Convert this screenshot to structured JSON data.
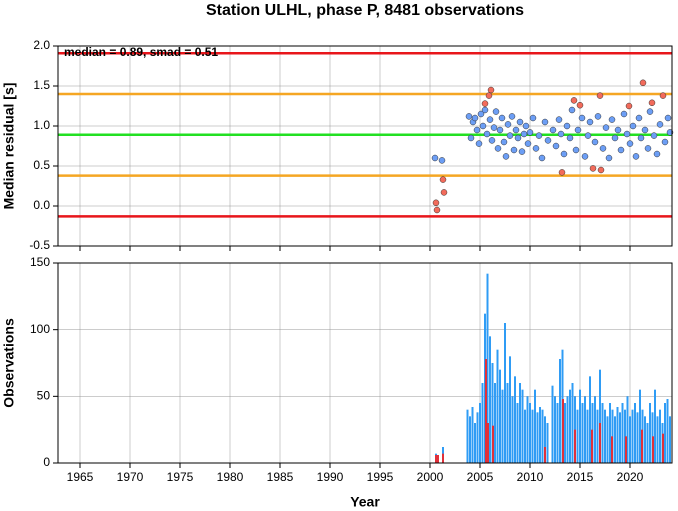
{
  "chart_data": [
    {
      "type": "scatter",
      "title": "Station ULHL, phase P, 8481 observations",
      "ylabel": "Median residual [s]",
      "annotation": "median = 0.89, smad = 0.51",
      "xlim": [
        1962.8,
        2024.2
      ],
      "xticks": [
        1965,
        1970,
        1975,
        1980,
        1985,
        1990,
        1995,
        2000,
        2005,
        2010,
        2015,
        2020
      ],
      "ylim": [
        -0.5,
        2.0
      ],
      "yticks": [
        {
          "value": 2,
          "label": "2.0"
        },
        1.5,
        {
          "value": 1,
          "label": "1.0"
        },
        0.5,
        {
          "value": 0,
          "label": "0.0"
        },
        -0.5
      ],
      "grid": true,
      "lines": [
        {
          "value": 1.91,
          "color": "#e8161b"
        },
        {
          "value": 1.4,
          "color": "#f5a623"
        },
        {
          "value": 0.89,
          "color": "#22e022"
        },
        {
          "value": 0.38,
          "color": "#f5a623"
        },
        {
          "value": -0.13,
          "color": "#e8161b"
        }
      ],
      "series": [
        {
          "color": "#6c9ef5",
          "x": [
            2000.5,
            2001.2,
            2003.9,
            2004.1,
            2004.3,
            2004.5,
            2004.7,
            2004.9,
            2005.1,
            2005.3,
            2005.5,
            2005.7,
            2006.0,
            2006.2,
            2006.4,
            2006.6,
            2006.8,
            2007.0,
            2007.2,
            2007.4,
            2007.6,
            2007.8,
            2008.0,
            2008.2,
            2008.4,
            2008.6,
            2008.8,
            2009.0,
            2009.2,
            2009.4,
            2009.6,
            2009.8,
            2010.0,
            2010.3,
            2010.6,
            2010.9,
            2011.2,
            2011.5,
            2011.8,
            2012.3,
            2012.6,
            2012.9,
            2013.1,
            2013.4,
            2013.7,
            2014.0,
            2014.2,
            2014.6,
            2014.8,
            2015.2,
            2015.5,
            2015.8,
            2016.0,
            2016.5,
            2016.8,
            2017.3,
            2017.6,
            2017.9,
            2018.2,
            2018.5,
            2018.8,
            2019.1,
            2019.4,
            2019.7,
            2020.0,
            2020.3,
            2020.6,
            2020.9,
            2021.1,
            2021.5,
            2021.8,
            2022.0,
            2022.4,
            2022.7,
            2023.0,
            2023.5,
            2023.8,
            2024.0
          ],
          "y": [
            0.6,
            0.57,
            1.12,
            0.85,
            1.05,
            1.1,
            0.95,
            0.78,
            1.15,
            1.0,
            1.2,
            0.9,
            1.08,
            0.82,
            0.98,
            1.18,
            0.72,
            0.95,
            1.1,
            0.8,
            0.62,
            1.02,
            0.88,
            1.12,
            0.7,
            0.95,
            0.85,
            1.05,
            0.68,
            0.9,
            1.0,
            0.78,
            0.92,
            1.1,
            0.72,
            0.88,
            0.6,
            1.05,
            0.82,
            0.95,
            0.75,
            1.08,
            0.9,
            0.65,
            1.0,
            0.85,
            1.2,
            0.7,
            0.95,
            1.1,
            0.62,
            0.88,
            1.05,
            0.8,
            1.12,
            0.72,
            0.98,
            0.6,
            1.08,
            0.85,
            0.95,
            0.7,
            1.15,
            0.9,
            0.78,
            1.0,
            0.62,
            1.1,
            0.85,
            0.95,
            0.72,
            1.18,
            0.88,
            0.65,
            1.02,
            0.8,
            1.1,
            0.92
          ]
        },
        {
          "color": "#f26b5b",
          "x": [
            2000.6,
            2000.7,
            2001.3,
            2001.4,
            2005.5,
            2005.9,
            2006.1,
            2013.2,
            2014.4,
            2015.0,
            2016.3,
            2017.0,
            2017.1,
            2019.9,
            2021.3,
            2022.2,
            2023.3
          ],
          "y": [
            0.04,
            -0.05,
            0.33,
            0.17,
            1.28,
            1.38,
            1.45,
            0.42,
            1.32,
            1.26,
            0.47,
            1.38,
            0.45,
            1.25,
            1.54,
            1.29,
            1.38
          ]
        }
      ]
    },
    {
      "type": "bar",
      "xlabel": "Year",
      "ylabel": "Observations",
      "xlim": [
        1962.8,
        2024.2
      ],
      "xticks": [
        1965,
        1970,
        1975,
        1980,
        1985,
        1990,
        1995,
        2000,
        2005,
        2010,
        2015,
        2020
      ],
      "ylim": [
        0,
        150
      ],
      "yticks": [
        0,
        50,
        100,
        150
      ],
      "grid": true,
      "series": [
        {
          "color": "#2f9cf5",
          "x": [
            2000.6,
            2001.3,
            2003.75,
            2004,
            2004.25,
            2004.5,
            2004.75,
            2005,
            2005.25,
            2005.5,
            2005.75,
            2006,
            2006.25,
            2006.5,
            2006.75,
            2007,
            2007.25,
            2007.5,
            2007.75,
            2008,
            2008.25,
            2008.5,
            2008.75,
            2009,
            2009.25,
            2009.5,
            2009.75,
            2010,
            2010.25,
            2010.5,
            2010.75,
            2011,
            2011.25,
            2011.5,
            2011.75,
            2012.25,
            2012.5,
            2012.75,
            2013,
            2013.25,
            2013.5,
            2013.75,
            2014,
            2014.25,
            2014.5,
            2014.75,
            2015,
            2015.25,
            2015.5,
            2015.75,
            2016,
            2016.25,
            2016.5,
            2016.75,
            2017,
            2017.25,
            2017.5,
            2017.75,
            2018,
            2018.25,
            2018.5,
            2018.75,
            2019,
            2019.25,
            2019.5,
            2019.75,
            2020,
            2020.25,
            2020.5,
            2020.75,
            2021,
            2021.25,
            2021.5,
            2021.75,
            2022,
            2022.25,
            2022.5,
            2022.75,
            2023,
            2023.25,
            2023.5,
            2023.75,
            2024
          ],
          "values": [
            7,
            12,
            40,
            35,
            42,
            30,
            38,
            45,
            60,
            112,
            142,
            95,
            75,
            60,
            85,
            70,
            55,
            105,
            60,
            80,
            50,
            65,
            45,
            60,
            55,
            40,
            50,
            45,
            40,
            55,
            38,
            42,
            40,
            35,
            30,
            58,
            50,
            45,
            78,
            85,
            45,
            50,
            55,
            60,
            50,
            40,
            55,
            45,
            50,
            40,
            65,
            45,
            50,
            40,
            70,
            45,
            40,
            35,
            45,
            40,
            35,
            42,
            38,
            45,
            40,
            50,
            35,
            40,
            45,
            38,
            55,
            40,
            35,
            30,
            45,
            38,
            55,
            35,
            40,
            30,
            45,
            48,
            35
          ]
        },
        {
          "color": "#e0303a",
          "x": [
            2000.6,
            2000.8,
            2001.3,
            2005.6,
            2005.8,
            2006.3,
            2011.5,
            2013.3,
            2014.5,
            2016.2,
            2017.0,
            2018.2,
            2019.6,
            2021.2,
            2022.3,
            2023.3
          ],
          "values": [
            6,
            6,
            7,
            78,
            30,
            28,
            12,
            48,
            25,
            25,
            30,
            20,
            20,
            25,
            20,
            22
          ]
        }
      ]
    }
  ]
}
